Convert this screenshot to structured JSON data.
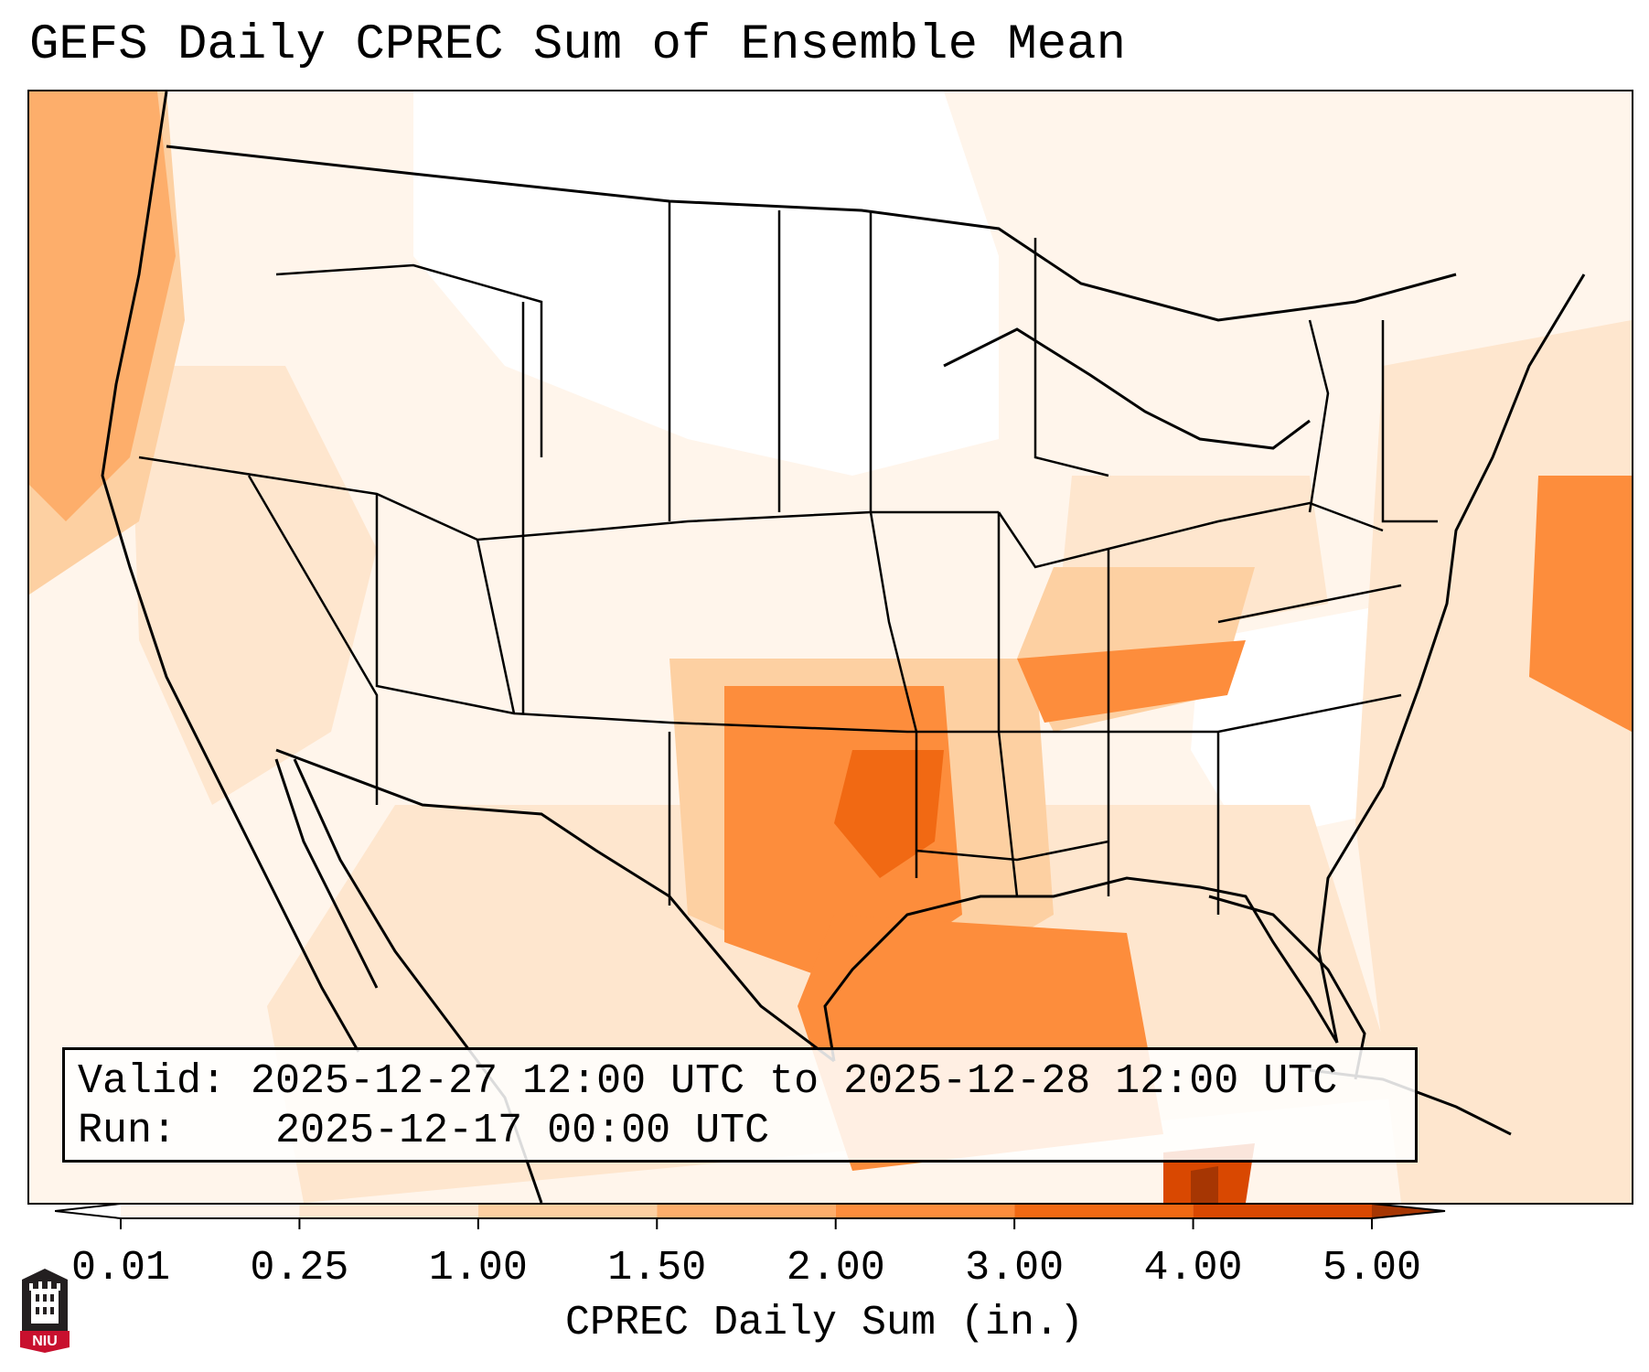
{
  "title": "GEFS Daily CPREC Sum of Ensemble Mean",
  "info": {
    "valid_label": "Valid:",
    "valid_value": "2025-12-27 12:00 UTC to 2025-12-28 12:00 UTC",
    "run_label": "Run:",
    "run_value": "2025-12-17 00:00 UTC"
  },
  "colorbar": {
    "label": "CPREC Daily Sum (in.)",
    "ticks": [
      "0.01",
      "0.25",
      "1.00",
      "1.50",
      "2.00",
      "3.00",
      "4.00",
      "5.00"
    ],
    "colors": [
      "#fff5eb",
      "#fee6ce",
      "#fdd0a2",
      "#fdae6b",
      "#fd8d3c",
      "#f16913",
      "#d94801",
      "#a63603"
    ],
    "under_color": "#ffffff",
    "over_color": "#7f2704"
  },
  "logo": {
    "text": "NIU",
    "colors": {
      "shield": "#231f20",
      "band": "#c8102e"
    }
  },
  "map_colors": {
    "land_border": "#000000",
    "ocean_faint": "#fff5eb"
  }
}
